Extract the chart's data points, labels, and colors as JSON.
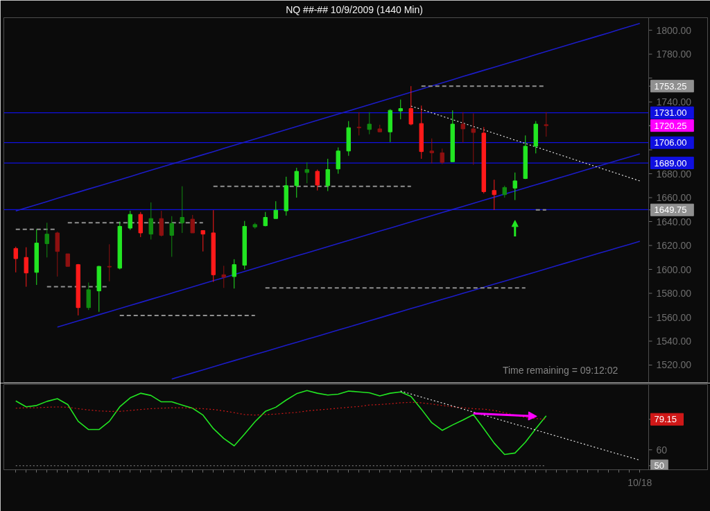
{
  "chart_data": [
    {
      "type": "candlestick",
      "title": "NQ ##-##  10/9/2009 (1440 Min)",
      "categories": [
        null,
        null,
        null,
        null,
        null,
        null,
        null,
        null,
        null,
        null,
        null,
        null,
        null,
        null,
        null,
        null,
        null,
        null,
        null,
        null,
        null,
        null,
        null,
        null,
        null,
        null,
        null,
        null,
        null,
        null,
        null,
        null,
        null,
        null,
        null,
        null,
        null,
        null,
        null,
        null,
        null,
        null,
        null,
        null,
        null,
        null,
        null,
        null,
        null,
        null,
        null,
        null,
        null,
        null,
        null,
        null,
        null,
        null,
        null,
        null,
        null
      ],
      "ohlc": [
        [
          1617.5,
          1619,
          1597.5,
          1609
        ],
        [
          1610,
          1618.5,
          1585.5,
          1597
        ],
        [
          1597.5,
          1633.5,
          1587,
          1622
        ],
        [
          1621.5,
          1639,
          1610,
          1629.5
        ],
        [
          1630.5,
          1631.5,
          1594,
          1615
        ],
        [
          1613,
          1613,
          1602.5,
          1602.5
        ],
        [
          1604,
          1604.5,
          1561.5,
          1568
        ],
        [
          1568,
          1589,
          1566,
          1583
        ],
        [
          1582,
          1603,
          1564.5,
          1602.5
        ],
        [
          1602.5,
          1621,
          1590,
          1602
        ],
        [
          1601,
          1640,
          1600,
          1636
        ],
        [
          1634.5,
          1649,
          1633,
          1646
        ],
        [
          1646,
          1648,
          1627,
          1630.5
        ],
        [
          1629.5,
          1656,
          1625,
          1642.5
        ],
        [
          1642.5,
          1649,
          1627.5,
          1628.5
        ],
        [
          1628.5,
          1644.5,
          1610.5,
          1638.5
        ],
        [
          1639,
          1669.5,
          1630.5,
          1643.5
        ],
        [
          1642,
          1645.5,
          1630.5,
          1630.5
        ],
        [
          1632.5,
          1632.5,
          1615,
          1629.5
        ],
        [
          1630.5,
          1649.5,
          1589.5,
          1595.5
        ],
        [
          1595.5,
          1603,
          1584.5,
          1593.5
        ],
        [
          1594,
          1608.5,
          1584,
          1604
        ],
        [
          1603.5,
          1640.5,
          1600,
          1636
        ],
        [
          1635.5,
          1639,
          1634,
          1637.5
        ],
        [
          1636.5,
          1648,
          1636,
          1643.5
        ],
        [
          1642.5,
          1657,
          1642.5,
          1649.5
        ],
        [
          1649,
          1677.5,
          1645,
          1670
        ],
        [
          1670,
          1685,
          1660,
          1682
        ],
        [
          1681,
          1689.5,
          1672,
          1683.5
        ],
        [
          1682,
          1683.5,
          1666,
          1670.5
        ],
        [
          1670,
          1692.5,
          1665.5,
          1683.5
        ],
        [
          1684,
          1702,
          1680,
          1699
        ],
        [
          1699,
          1724,
          1695,
          1718.5
        ],
        [
          1719,
          1731.5,
          1712,
          1718.5
        ],
        [
          1717,
          1731.5,
          1713,
          1721.5
        ],
        [
          1717.5,
          1721,
          1715,
          1715
        ],
        [
          1715,
          1734,
          1706.5,
          1733
        ],
        [
          1732.5,
          1742,
          1725.5,
          1734.5
        ],
        [
          1734.5,
          1753.25,
          1720.5,
          1721.5
        ],
        [
          1722,
          1737,
          1692.5,
          1698.5
        ],
        [
          1699,
          1709.5,
          1688.5,
          1697.5
        ],
        [
          1697.5,
          1701,
          1688,
          1689.5
        ],
        [
          1690,
          1733,
          1690,
          1721.5
        ],
        [
          1721.5,
          1731.5,
          1706,
          1717.5
        ],
        [
          1717.5,
          1730.5,
          1687.5,
          1714.5
        ],
        [
          1714,
          1719,
          1663.5,
          1665
        ],
        [
          1666,
          1675,
          1649.75,
          1662.5
        ],
        [
          1662.5,
          1670,
          1660,
          1668.5
        ],
        [
          1668,
          1681,
          1658,
          1674
        ],
        [
          1676,
          1712,
          1675.5,
          1703
        ],
        [
          1703,
          1724,
          1697,
          1721.5
        ],
        [
          1721,
          1731.5,
          1711,
          1720.25
        ],
        null,
        null,
        null,
        null,
        null,
        null,
        null,
        null,
        null
      ],
      "colors": [
        "#ff1a1a",
        "#ff1a1a",
        "#22e622",
        "#108c10",
        "#8e1010",
        "#8e1010",
        "#ff1a1a",
        "#108c10",
        "#22e622",
        "#8e1010",
        "#22e622",
        "#22e622",
        "#ff1a1a",
        "#108c10",
        "#8e1010",
        "#108c10",
        "#108c10",
        "#8e1010",
        "#ff1a1a",
        "#ff1a1a",
        "#8e1010",
        "#22e622",
        "#22e622",
        "#108c10",
        "#22e622",
        "#22e622",
        "#22e622",
        "#22e622",
        "#108c10",
        "#ff1a1a",
        "#22e622",
        "#22e622",
        "#22e622",
        "#8e1010",
        "#108c10",
        "#8e1010",
        "#22e622",
        "#22e622",
        "#ff1a1a",
        "#ff1a1a",
        "#8e1010",
        "#8e1010",
        "#22e622",
        "#8e1010",
        "#8e1010",
        "#ff1a1a",
        "#ff1a1a",
        "#108c10",
        "#22e622",
        "#22e622",
        "#22e622",
        "#8e1010",
        null,
        null,
        null,
        null,
        null,
        null,
        null,
        null,
        null
      ],
      "ylim": [
        1505.5,
        1810.5
      ],
      "yticks": [
        {
          "value": 1520,
          "label": "1520.00"
        },
        {
          "value": 1540,
          "label": "1540.00"
        },
        {
          "value": 1560,
          "label": "1560.00"
        },
        {
          "value": 1580,
          "label": "1580.00"
        },
        {
          "value": 1600,
          "label": "1600.00"
        },
        {
          "value": 1620,
          "label": "1620.00"
        },
        {
          "value": 1640,
          "label": "1640.00"
        },
        {
          "value": 1660,
          "label": "1660.00"
        },
        {
          "value": 1680,
          "label": "1680.00"
        },
        {
          "value": 1700,
          "label": null
        },
        {
          "value": 1720,
          "label": null
        },
        {
          "value": 1740,
          "label": "1740.00"
        },
        {
          "value": 1760,
          "label": null
        },
        {
          "value": 1780,
          "label": "1780.00"
        },
        {
          "value": 1800,
          "label": "1800.00"
        },
        {
          "value": 1753.25,
          "label": "1753.25"
        },
        {
          "value": 1720.25,
          "label": "1720.25"
        },
        {
          "value": 1649.75,
          "label": "1649.75"
        }
      ],
      "tick_labels": "y",
      "ref_lines": [
        {
          "axis": "y",
          "value": 1731,
          "label": "1731.00",
          "color": "#1010e0",
          "line_style": "solid"
        },
        {
          "axis": "y",
          "value": 1706,
          "label": "1706.00",
          "color": "#1010e0",
          "line_style": "solid"
        },
        {
          "axis": "y",
          "value": 1689,
          "label": "1689.00",
          "color": "#1010e0",
          "line_style": "solid"
        },
        {
          "axis": "y",
          "value": 1650,
          "color": "#1010e0",
          "line_style": "solid"
        }
      ],
      "series": [
        {
          "type": "line",
          "color": "#1c1cc8",
          "line_style": "solid",
          "values": [
            1648.9,
            1651.5,
            1654.1,
            1656.7,
            1659.4,
            1662.0,
            1664.6,
            1667.2,
            1669.8,
            1672.4,
            1675.0,
            1677.6,
            1680.3,
            1682.9,
            1685.5,
            1688.1,
            1690.7,
            1693.3,
            1695.9,
            1698.5,
            1701.2,
            1703.8,
            1706.4,
            1709.0,
            1711.6,
            1714.2,
            1716.8,
            1719.5,
            1722.1,
            1724.7,
            1727.3,
            1729.9,
            1732.5,
            1735.1,
            1737.7,
            1740.4,
            1743.0,
            1745.6,
            1748.2,
            1750.8,
            1753.4,
            1756.0,
            1758.6,
            1761.3,
            1763.9,
            1766.5,
            1769.1,
            1771.7,
            1774.3,
            1776.9,
            1779.6,
            1782.2,
            1784.8,
            1787.4,
            1790.0,
            1792.6,
            1795.2,
            1797.8,
            1800.5,
            1803.1,
            1805.7
          ]
        },
        {
          "type": "line",
          "color": "#1c1cc8",
          "line_style": "solid",
          "values": [
            null,
            null,
            null,
            null,
            1551.7,
            1554.3,
            1556.9,
            1559.5,
            1562.1,
            1564.7,
            1567.3,
            1569.9,
            1572.4,
            1575.0,
            1577.6,
            1580.2,
            1582.8,
            1585.4,
            1588.0,
            1590.6,
            1593.1,
            1595.7,
            1598.3,
            1600.9,
            1603.5,
            1606.1,
            1608.7,
            1611.3,
            1613.8,
            1616.4,
            1619.0,
            1621.6,
            1624.2,
            1626.8,
            1629.4,
            1632.0,
            1634.5,
            1637.1,
            1639.7,
            1642.3,
            1644.9,
            1647.5,
            1650.1,
            1652.6,
            1655.2,
            1657.8,
            1660.4,
            1663.0,
            1665.6,
            1668.2,
            1670.8,
            1673.3,
            1675.9,
            1678.5,
            1681.1,
            1683.7,
            1686.3,
            1688.9,
            1691.5,
            1694.0,
            1696.6
          ]
        },
        {
          "type": "line",
          "color": "#1c1cc8",
          "line_style": "solid",
          "values": [
            null,
            null,
            null,
            null,
            null,
            null,
            null,
            null,
            null,
            null,
            null,
            null,
            null,
            null,
            null,
            1508.3,
            1510.9,
            1513.4,
            1516.0,
            1518.5,
            1521.1,
            1523.7,
            1526.2,
            1528.8,
            1531.3,
            1533.9,
            1536.5,
            1539.0,
            1541.6,
            1544.1,
            1546.7,
            1549.3,
            1551.8,
            1554.4,
            1556.9,
            1559.5,
            1562.1,
            1564.6,
            1567.2,
            1569.7,
            1572.3,
            1574.9,
            1577.4,
            1580.0,
            1582.5,
            1585.1,
            1587.7,
            1590.2,
            1592.8,
            1595.3,
            1597.9,
            1600.5,
            1603.0,
            1605.6,
            1608.1,
            1610.7,
            1613.3,
            1615.8,
            1618.4,
            1620.9,
            1623.5
          ]
        },
        {
          "type": "line",
          "color": "#909090",
          "line_style": "dashed",
          "values": [
            1633.5,
            1633.5,
            1633.5,
            1633.5,
            1633.5,
            null,
            null,
            null,
            null,
            null,
            null,
            null,
            null,
            null,
            null,
            null,
            null,
            null,
            null,
            null,
            null,
            null,
            null,
            null,
            null,
            null,
            null,
            null,
            null,
            null,
            null,
            null,
            null,
            null,
            null,
            null,
            null,
            null,
            null,
            null,
            null,
            null,
            null,
            null,
            null,
            null,
            null,
            null,
            null,
            null,
            null,
            null,
            null,
            null,
            null,
            null,
            null,
            null,
            null,
            null,
            null
          ]
        },
        {
          "type": "line",
          "color": "#909090",
          "line_style": "dashed",
          "values": [
            null,
            null,
            null,
            null,
            null,
            1639,
            1639,
            1639,
            1639,
            1639,
            1639,
            1639,
            1639,
            1639,
            1639,
            1639,
            1639,
            1639,
            1639,
            null,
            null,
            null,
            null,
            null,
            null,
            null,
            null,
            null,
            null,
            null,
            null,
            null,
            null,
            null,
            null,
            null,
            null,
            null,
            null,
            null,
            null,
            null,
            null,
            null,
            null,
            null,
            null,
            null,
            null,
            null,
            null,
            null,
            null,
            null,
            null,
            null,
            null,
            null,
            null,
            null,
            null
          ]
        },
        {
          "type": "line",
          "color": "#909090",
          "line_style": "dashed",
          "values": [
            null,
            null,
            null,
            null,
            null,
            null,
            null,
            null,
            null,
            null,
            null,
            null,
            null,
            null,
            null,
            null,
            null,
            null,
            null,
            1669.5,
            1669.5,
            1669.5,
            1669.5,
            1669.5,
            1669.5,
            1669.5,
            1669.5,
            1669.5,
            1669.5,
            1669.5,
            1669.5,
            1669.5,
            1669.5,
            1669.5,
            1669.5,
            1669.5,
            1669.5,
            1669.5,
            1669.5,
            null,
            null,
            null,
            null,
            null,
            null,
            null,
            null,
            null,
            null,
            null,
            null,
            null,
            null,
            null,
            null,
            null,
            null,
            null,
            null,
            null,
            null
          ]
        },
        {
          "type": "line",
          "color": "#909090",
          "line_style": "dashed",
          "values": [
            null,
            null,
            null,
            null,
            null,
            null,
            null,
            null,
            null,
            null,
            null,
            null,
            null,
            null,
            null,
            null,
            null,
            null,
            null,
            null,
            null,
            null,
            null,
            null,
            null,
            null,
            null,
            null,
            null,
            null,
            null,
            null,
            null,
            null,
            null,
            null,
            null,
            null,
            null,
            1753.25,
            1753.25,
            1753.25,
            1753.25,
            1753.25,
            1753.25,
            1753.25,
            1753.25,
            1753.25,
            1753.25,
            1753.25,
            1753.25,
            1753.25,
            null,
            null,
            null,
            null,
            null,
            null,
            null,
            null,
            null
          ]
        },
        {
          "type": "line",
          "color": "#909090",
          "line_style": "dashed",
          "values": [
            null,
            null,
            null,
            1585.5,
            1585.5,
            1585.5,
            1585.5,
            1585.5,
            1585.5,
            1585.5,
            null,
            null,
            null,
            null,
            null,
            null,
            null,
            null,
            null,
            null,
            null,
            null,
            null,
            null,
            null,
            null,
            null,
            null,
            null,
            null,
            null,
            null,
            null,
            null,
            null,
            null,
            null,
            null,
            null,
            null,
            null,
            null,
            null,
            null,
            null,
            null,
            null,
            null,
            null,
            null,
            null,
            null,
            null,
            null,
            null,
            null,
            null,
            null,
            null,
            null,
            null
          ]
        },
        {
          "type": "line",
          "color": "#909090",
          "line_style": "dashed",
          "values": [
            null,
            null,
            null,
            null,
            null,
            null,
            null,
            null,
            null,
            null,
            1561.5,
            1561.5,
            1561.5,
            1561.5,
            1561.5,
            1561.5,
            1561.5,
            1561.5,
            1561.5,
            1561.5,
            1561.5,
            1561.5,
            1561.5,
            1561.5,
            null,
            null,
            null,
            null,
            null,
            null,
            null,
            null,
            null,
            null,
            null,
            null,
            null,
            null,
            null,
            null,
            null,
            null,
            null,
            null,
            null,
            null,
            null,
            null,
            null,
            null,
            null,
            null,
            null,
            null,
            null,
            null,
            null,
            null,
            null,
            null,
            null
          ]
        },
        {
          "type": "line",
          "color": "#909090",
          "line_style": "dashed",
          "values": [
            null,
            null,
            null,
            null,
            null,
            null,
            null,
            null,
            null,
            null,
            null,
            null,
            null,
            null,
            null,
            null,
            null,
            null,
            null,
            null,
            null,
            null,
            null,
            null,
            1584.5,
            1584.5,
            1584.5,
            1584.5,
            1584.5,
            1584.5,
            1584.5,
            1584.5,
            1584.5,
            1584.5,
            1584.5,
            1584.5,
            1584.5,
            1584.5,
            1584.5,
            1584.5,
            1584.5,
            1584.5,
            1584.5,
            1584.5,
            1584.5,
            1584.5,
            1584.5,
            1584.5,
            1584.5,
            1584.5,
            null,
            null,
            null,
            null,
            null,
            null,
            null,
            null,
            null,
            null,
            null
          ]
        },
        {
          "type": "line",
          "color": "#909090",
          "line_style": "dashed",
          "values": [
            null,
            null,
            null,
            null,
            null,
            null,
            null,
            null,
            null,
            null,
            null,
            null,
            null,
            null,
            null,
            null,
            null,
            null,
            null,
            null,
            null,
            null,
            null,
            null,
            null,
            null,
            null,
            null,
            null,
            null,
            null,
            null,
            null,
            null,
            null,
            null,
            null,
            null,
            null,
            null,
            null,
            null,
            null,
            null,
            null,
            null,
            null,
            null,
            null,
            null,
            1649.75,
            1649.75,
            null,
            null,
            null,
            null,
            null,
            null,
            null,
            null,
            null
          ]
        },
        {
          "type": "line",
          "color": "#e6e6e6",
          "line_style": "dotted",
          "values": [
            null,
            null,
            null,
            null,
            null,
            null,
            null,
            null,
            null,
            null,
            null,
            null,
            null,
            null,
            null,
            null,
            null,
            null,
            null,
            null,
            null,
            null,
            null,
            null,
            null,
            null,
            null,
            null,
            null,
            null,
            null,
            null,
            null,
            null,
            null,
            null,
            null,
            null,
            1736.6,
            1733.8,
            1730.9,
            1728.1,
            1725.2,
            1722.4,
            1719.5,
            1716.7,
            1713.8,
            1711.0,
            1708.1,
            1705.3,
            1702.4,
            1699.6,
            1696.7,
            1693.9,
            1691.0,
            1688.2,
            1685.3,
            1682.5,
            1679.7,
            1676.8,
            1674.0
          ]
        }
      ],
      "annotations": [
        "Time remaining = 09:12:02"
      ]
    },
    {
      "type": "line",
      "categories": [
        null,
        null,
        null,
        null,
        null,
        null,
        null,
        null,
        null,
        null,
        null,
        null,
        null,
        null,
        null,
        null,
        null,
        null,
        null,
        null,
        null,
        null,
        null,
        null,
        null,
        null,
        null,
        null,
        null,
        null,
        null,
        null,
        null,
        null,
        null,
        null,
        null,
        null,
        null,
        null,
        null,
        null,
        null,
        null,
        null,
        null,
        null,
        null,
        null,
        null,
        null,
        null,
        null,
        null,
        null,
        null,
        null,
        null,
        null,
        null,
        null
      ],
      "ylim": [
        47.5,
        101
      ],
      "yticks": [
        50,
        60,
        79.15
      ],
      "tick_labels": "y",
      "series": [
        {
          "color": "#22e622",
          "values": [
            90.7,
            87.0,
            87.8,
            90.4,
            92.1,
            88.4,
            77.9,
            72.7,
            72.7,
            77.9,
            87.0,
            92.6,
            95.5,
            94.1,
            90.1,
            90.1,
            88.1,
            86.1,
            81.8,
            73.3,
            67.1,
            62.5,
            69.9,
            77.6,
            84.1,
            86.7,
            91.2,
            95.2,
            97.2,
            95.5,
            94.4,
            94.9,
            96.9,
            96.3,
            95.8,
            93.8,
            95.5,
            96.3,
            93.5,
            85.5,
            77.0,
            72.2,
            75.6,
            78.7,
            82.1,
            73.3,
            64.2,
            57.1,
            58.0,
            64.8,
            73.3,
            81.3,
            null,
            null,
            null,
            null,
            null,
            null,
            null,
            null,
            null
          ]
        },
        {
          "color": "#d01818",
          "line_style": "dotted",
          "values": [
            86.1,
            86.4,
            86.4,
            86.7,
            86.9,
            86.7,
            85.8,
            85.0,
            84.4,
            84.1,
            84.1,
            84.7,
            85.3,
            85.8,
            86.1,
            86.4,
            86.4,
            86.1,
            85.8,
            85.3,
            84.4,
            83.3,
            82.1,
            81.8,
            82.1,
            82.4,
            83.0,
            83.5,
            84.4,
            85.0,
            85.5,
            86.1,
            86.7,
            87.2,
            88.1,
            88.4,
            88.9,
            89.5,
            89.8,
            89.5,
            88.7,
            87.8,
            87.0,
            86.4,
            85.8,
            85.5,
            84.7,
            83.3,
            81.6,
            80.4,
            79.6,
            79.15,
            null,
            null,
            null,
            null,
            null,
            null,
            null,
            null,
            null
          ]
        },
        {
          "color": "#909090",
          "line_style": "dotted",
          "values": [
            50,
            50,
            50,
            50,
            50,
            50,
            50,
            50,
            50,
            50,
            50,
            50,
            50,
            50,
            50,
            50,
            50,
            50,
            50,
            50,
            50,
            50,
            50,
            50,
            50,
            50,
            50,
            50,
            50,
            50,
            50,
            50,
            50,
            50,
            50,
            50,
            50,
            50,
            50,
            50,
            50,
            50,
            50,
            50,
            50,
            50,
            50,
            50,
            50,
            50,
            50,
            50,
            null,
            null,
            null,
            null,
            null,
            null,
            null,
            null,
            null
          ]
        },
        {
          "color": "#e6e6e6",
          "line_style": "dotted",
          "values": [
            null,
            null,
            null,
            null,
            null,
            null,
            null,
            null,
            null,
            null,
            null,
            null,
            null,
            null,
            null,
            null,
            null,
            null,
            null,
            null,
            null,
            null,
            null,
            null,
            null,
            null,
            null,
            null,
            null,
            null,
            null,
            null,
            null,
            null,
            null,
            null,
            null,
            96.9,
            95.0,
            93.1,
            91.2,
            89.4,
            87.5,
            85.6,
            83.7,
            81.8,
            79.9,
            78.0,
            76.1,
            74.3,
            72.4,
            70.5,
            68.6,
            66.7,
            64.8,
            62.9,
            61.0,
            59.1,
            57.2,
            55.4,
            53.5
          ]
        }
      ],
      "annotations": [
        "10/18"
      ]
    }
  ]
}
